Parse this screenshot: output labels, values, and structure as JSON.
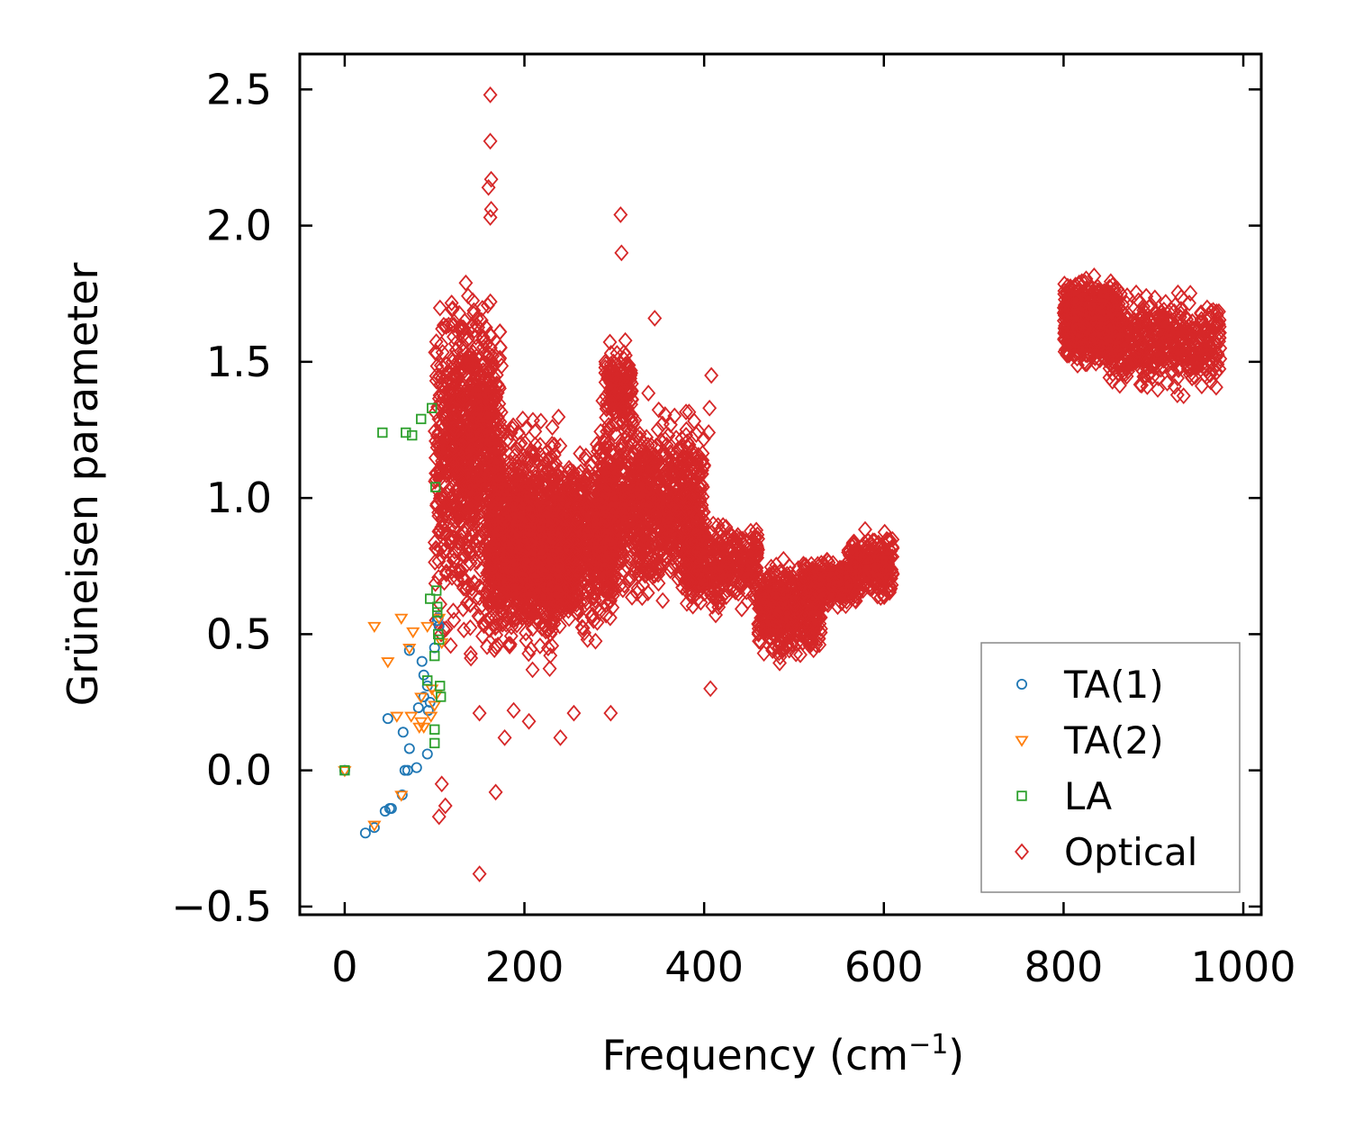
{
  "chart_data": {
    "type": "scatter",
    "title": "",
    "xlabel": "Frequency (cm",
    "xlabel_sup": "−1",
    "xlabel_close": ")",
    "ylabel": "Grüneisen parameter",
    "xlim": [
      -50,
      1020
    ],
    "ylim": [
      -0.53,
      2.63
    ],
    "xticks": [
      0,
      200,
      400,
      600,
      800,
      1000
    ],
    "yticks": [
      -0.5,
      0.0,
      0.5,
      1.0,
      1.5,
      2.0,
      2.5
    ],
    "xtick_labels": [
      "0",
      "200",
      "400",
      "600",
      "800",
      "1000"
    ],
    "ytick_labels": [
      "−0.5",
      "0.0",
      "0.5",
      "1.0",
      "1.5",
      "2.0",
      "2.5"
    ],
    "legend_position": "lower-right",
    "series": [
      {
        "name": "TA(1)",
        "marker": "circle",
        "color": "#1f77b4",
        "points": [
          [
            0,
            0
          ],
          [
            23,
            -0.23
          ],
          [
            33,
            -0.21
          ],
          [
            45,
            -0.15
          ],
          [
            48,
            0.19
          ],
          [
            50,
            -0.14
          ],
          [
            52,
            -0.14
          ],
          [
            64,
            -0.09
          ],
          [
            65,
            0.14
          ],
          [
            67,
            0.0
          ],
          [
            70,
            0.0
          ],
          [
            72,
            0.08
          ],
          [
            72,
            0.44
          ],
          [
            80,
            0.01
          ],
          [
            82,
            0.23
          ],
          [
            86,
            0.4
          ],
          [
            88,
            0.35
          ],
          [
            88,
            0.27
          ],
          [
            92,
            0.31
          ],
          [
            92,
            0.06
          ],
          [
            93,
            0.22
          ],
          [
            95,
            0.25
          ],
          [
            100,
            0.45
          ],
          [
            103,
            0.55
          ],
          [
            104,
            0.56
          ],
          [
            105,
            0.53
          ]
        ]
      },
      {
        "name": "TA(2)",
        "marker": "triangle-down",
        "color": "#ff7f0e",
        "points": [
          [
            0,
            0
          ],
          [
            33,
            -0.2
          ],
          [
            33,
            0.53
          ],
          [
            48,
            0.4
          ],
          [
            58,
            0.2
          ],
          [
            63,
            -0.09
          ],
          [
            63,
            0.56
          ],
          [
            72,
            0.45
          ],
          [
            74,
            0.2
          ],
          [
            76,
            0.51
          ],
          [
            83,
            0.16
          ],
          [
            85,
            0.18
          ],
          [
            85,
            0.27
          ],
          [
            88,
            0.16
          ],
          [
            92,
            0.53
          ],
          [
            96,
            0.2
          ],
          [
            97,
            0.3
          ],
          [
            100,
            0.24
          ],
          [
            102,
            0.28
          ],
          [
            105,
            0.56
          ],
          [
            108,
            0.47
          ]
        ]
      },
      {
        "name": "LA",
        "marker": "square",
        "color": "#2ca02c",
        "points": [
          [
            0,
            0
          ],
          [
            42,
            1.24
          ],
          [
            68,
            1.24
          ],
          [
            75,
            1.23
          ],
          [
            85,
            1.29
          ],
          [
            97,
            1.33
          ],
          [
            101,
            1.04
          ],
          [
            92,
            0.33
          ],
          [
            95,
            0.63
          ],
          [
            100,
            0.42
          ],
          [
            102,
            0.66
          ],
          [
            103,
            0.6
          ],
          [
            103,
            0.58
          ],
          [
            104,
            0.5
          ],
          [
            105,
            0.48
          ],
          [
            106,
            0.31
          ],
          [
            107,
            0.27
          ],
          [
            100,
            0.1
          ],
          [
            100,
            0.15
          ]
        ]
      },
      {
        "name": "Optical",
        "marker": "diamond",
        "color": "#d62728",
        "generated": true,
        "points": [
          [
            162,
            2.48
          ],
          [
            162,
            2.31
          ],
          [
            163,
            2.17
          ],
          [
            160,
            2.14
          ],
          [
            163,
            2.06
          ],
          [
            162,
            2.03
          ],
          [
            307,
            2.04
          ],
          [
            308,
            1.9
          ],
          [
            150,
            -0.38
          ],
          [
            168,
            -0.08
          ],
          [
            105,
            -0.17
          ],
          [
            112,
            -0.13
          ],
          [
            108,
            -0.05
          ],
          [
            240,
            0.12
          ],
          [
            178,
            0.12
          ],
          [
            205,
            0.18
          ],
          [
            296,
            0.21
          ],
          [
            150,
            0.21
          ],
          [
            255,
            0.21
          ],
          [
            408,
            1.45
          ],
          [
            406,
            1.33
          ],
          [
            405,
            1.24
          ],
          [
            345,
            1.66
          ],
          [
            407,
            0.3
          ],
          [
            188,
            0.22
          ],
          [
            460,
            0.85
          ]
        ],
        "clusters": [
          {
            "x": [
              100,
              175
            ],
            "y": [
              0.3,
              1.9
            ],
            "n": 700
          },
          {
            "x": [
              120,
              165
            ],
            "y": [
              0.8,
              1.75
            ],
            "n": 300
          },
          {
            "x": [
              160,
              240
            ],
            "y": [
              0.3,
              1.4
            ],
            "n": 900
          },
          {
            "x": [
              180,
              260
            ],
            "y": [
              0.5,
              1.05
            ],
            "n": 700
          },
          {
            "x": [
              230,
              300
            ],
            "y": [
              0.45,
              1.25
            ],
            "n": 700
          },
          {
            "x": [
              280,
              400
            ],
            "y": [
              0.55,
              1.4
            ],
            "n": 1100
          },
          {
            "x": [
              290,
              320
            ],
            "y": [
              1.2,
              1.6
            ],
            "n": 150
          },
          {
            "x": [
              380,
              460
            ],
            "y": [
              0.55,
              0.95
            ],
            "n": 350
          },
          {
            "x": [
              460,
              530
            ],
            "y": [
              0.38,
              0.8
            ],
            "n": 450
          },
          {
            "x": [
              510,
              570
            ],
            "y": [
              0.58,
              0.8
            ],
            "n": 300
          },
          {
            "x": [
              560,
              610
            ],
            "y": [
              0.6,
              0.9
            ],
            "n": 250
          },
          {
            "x": [
              800,
              860
            ],
            "y": [
              1.45,
              1.85
            ],
            "n": 600
          },
          {
            "x": [
              850,
              975
            ],
            "y": [
              1.35,
              1.8
            ],
            "n": 500
          }
        ]
      }
    ]
  }
}
